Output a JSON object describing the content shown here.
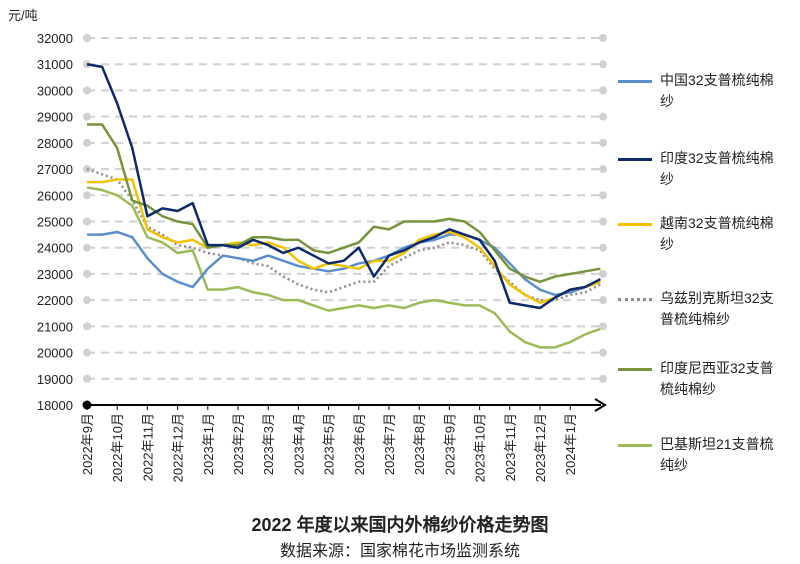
{
  "chart_data": {
    "type": "line",
    "title": "2022 年度以来国内外棉纱价格走势图",
    "subtitle": "数据来源：国家棉花市场监测系统",
    "y_label": "元/吨",
    "categories": [
      "2022年9月",
      null,
      "2022年10月",
      null,
      "2022年11月",
      null,
      "2022年12月",
      null,
      "2023年1月",
      null,
      "2023年2月",
      null,
      "2023年3月",
      null,
      "2023年4月",
      null,
      "2023年5月",
      null,
      "2023年6月",
      null,
      "2023年7月",
      null,
      "2023年8月",
      null,
      "2023年9月",
      null,
      "2023年10月",
      null,
      "2023年11月",
      null,
      "2023年12月",
      null,
      "2024年1月",
      null,
      null
    ],
    "ylim": [
      18000,
      32000
    ],
    "yticks": [
      18000,
      19000,
      20000,
      21000,
      22000,
      23000,
      24000,
      25000,
      26000,
      27000,
      28000,
      29000,
      30000,
      31000,
      32000
    ],
    "grid": true,
    "series": [
      {
        "name": "中国32支普梳纯棉纱",
        "color": "#5b8fc9",
        "values": [
          24500,
          24500,
          24600,
          24400,
          23600,
          23000,
          22700,
          22500,
          23200,
          23700,
          23600,
          23500,
          23700,
          23500,
          23300,
          23200,
          23100,
          23200,
          23400,
          23500,
          23700,
          24000,
          24200,
          24300,
          24500,
          24500,
          24300,
          24000,
          23400,
          22800,
          22400,
          22200,
          22300,
          22500,
          22800
        ]
      },
      {
        "name": "印度32支普梳纯棉纱",
        "color": "#0d2a6b",
        "values": [
          31000,
          30900,
          29500,
          27800,
          25200,
          25500,
          25400,
          25700,
          24100,
          24100,
          24000,
          24300,
          24100,
          23800,
          24000,
          23700,
          23400,
          23500,
          24000,
          22900,
          23700,
          23900,
          24200,
          24400,
          24700,
          24500,
          24300,
          23500,
          21900,
          21800,
          21700,
          22100,
          22400,
          22500,
          22800
        ]
      },
      {
        "name": "越南32支普梳纯棉纱",
        "color": "#f2c200",
        "values": [
          26500,
          26500,
          26600,
          26600,
          24700,
          24400,
          24200,
          24300,
          24000,
          24100,
          24200,
          24100,
          24200,
          24000,
          23500,
          23200,
          23400,
          23300,
          23200,
          23500,
          23500,
          23800,
          24300,
          24500,
          24600,
          24400,
          24000,
          23300,
          22600,
          22200,
          21900,
          22100,
          22400,
          22500,
          22700
        ]
      },
      {
        "name": "乌兹别克斯坦32支普梳纯棉纱",
        "color": "#8c8c8c",
        "style": "dotted",
        "values": [
          27000,
          26800,
          26600,
          25800,
          24800,
          24500,
          24100,
          24000,
          23800,
          23700,
          23600,
          23400,
          23300,
          22900,
          22600,
          22400,
          22300,
          22500,
          22700,
          22700,
          23300,
          23600,
          23900,
          24000,
          24200,
          24100,
          23900,
          23200,
          22700,
          22200,
          22000,
          22000,
          22200,
          22300,
          22600
        ]
      },
      {
        "name": "印度尼西亚32支普梳纯棉纱",
        "color": "#77933c",
        "values": [
          28700,
          28700,
          27800,
          25800,
          25600,
          25200,
          25000,
          24900,
          24000,
          24100,
          24100,
          24400,
          24400,
          24300,
          24300,
          23900,
          23800,
          24000,
          24200,
          24800,
          24700,
          25000,
          25000,
          25000,
          25100,
          25000,
          24600,
          23900,
          23200,
          22900,
          22700,
          22900,
          23000,
          23100,
          23200
        ]
      },
      {
        "name": "巴基斯坦21支普梳纯纱",
        "color": "#9bbb59",
        "values": [
          26300,
          26200,
          26000,
          25600,
          24400,
          24200,
          23800,
          23900,
          22400,
          22400,
          22500,
          22300,
          22200,
          22000,
          22000,
          21800,
          21600,
          21700,
          21800,
          21700,
          21800,
          21700,
          21900,
          22000,
          21900,
          21800,
          21800,
          21500,
          20800,
          20400,
          20200,
          20200,
          20400,
          20700,
          20900
        ]
      }
    ]
  }
}
